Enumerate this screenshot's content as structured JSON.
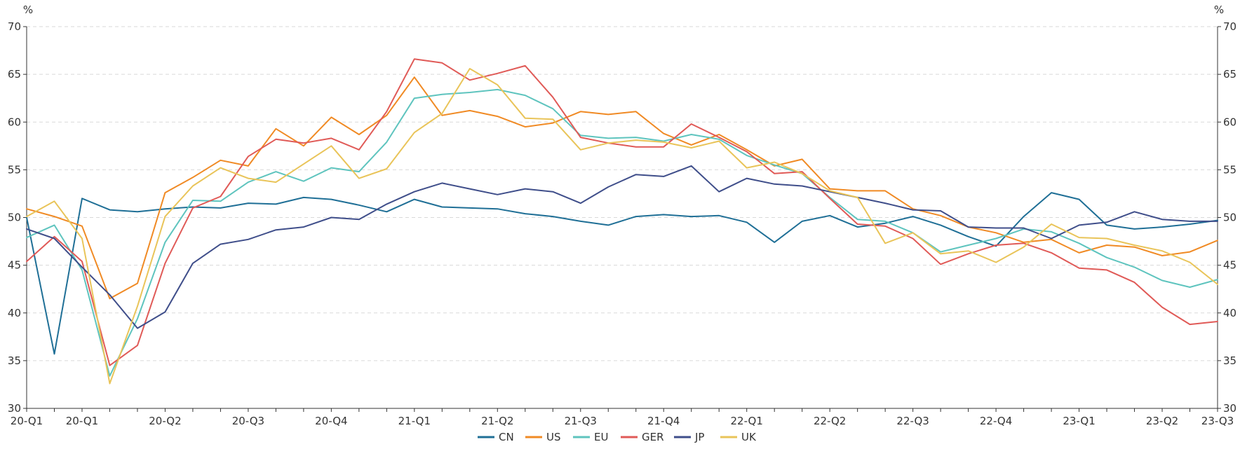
{
  "chart_data": {
    "type": "line",
    "title": "",
    "xlabel": "",
    "ylabel": "%",
    "ylabel_right": "%",
    "ylim": [
      30,
      70
    ],
    "yticks": [
      30,
      35,
      40,
      45,
      50,
      55,
      60,
      65,
      70
    ],
    "grid": true,
    "legend_position": "bottom-center",
    "x_tick_labels": [
      "20-Q1",
      "20-Q1",
      "20-Q2",
      "20-Q3",
      "20-Q4",
      "21-Q1",
      "21-Q2",
      "21-Q3",
      "21-Q4",
      "22-Q1",
      "22-Q2",
      "22-Q3",
      "22-Q4",
      "23-Q1",
      "23-Q2",
      "23-Q3"
    ],
    "x_tick_index": [
      0,
      2,
      5,
      8,
      11,
      14,
      17,
      20,
      23,
      26,
      29,
      32,
      35,
      38,
      41,
      43
    ],
    "n_points": 44,
    "series": [
      {
        "name": "CN",
        "color": "#1f6f96",
        "values": [
          50.0,
          35.7,
          52.0,
          50.8,
          50.6,
          50.9,
          51.1,
          51.0,
          51.5,
          51.4,
          52.1,
          51.9,
          51.3,
          50.6,
          51.9,
          51.1,
          51.0,
          50.9,
          50.4,
          50.1,
          49.6,
          49.2,
          50.1,
          50.3,
          50.1,
          50.2,
          49.5,
          47.4,
          49.6,
          50.2,
          49.0,
          49.4,
          50.1,
          49.2,
          48.0,
          47.0,
          50.1,
          52.6,
          51.9,
          49.2,
          48.8,
          49.0,
          49.3,
          49.7
        ]
      },
      {
        "name": "US",
        "color": "#f08a24",
        "values": [
          50.9,
          50.1,
          49.1,
          41.5,
          43.1,
          52.6,
          54.2,
          56.0,
          55.4,
          59.3,
          57.5,
          60.5,
          58.7,
          60.7,
          64.7,
          60.7,
          61.2,
          60.6,
          59.5,
          59.9,
          61.1,
          60.8,
          61.1,
          58.8,
          57.6,
          58.7,
          57.1,
          55.4,
          56.1,
          53.0,
          52.8,
          52.8,
          50.9,
          50.2,
          49.0,
          48.4,
          47.4,
          47.7,
          46.3,
          47.1,
          46.9,
          46.0,
          46.4,
          47.6
        ]
      },
      {
        "name": "EU",
        "color": "#5ec4be",
        "values": [
          47.9,
          49.2,
          44.5,
          33.4,
          39.4,
          47.4,
          51.8,
          51.7,
          53.7,
          54.8,
          53.8,
          55.2,
          54.8,
          57.9,
          62.5,
          62.9,
          63.1,
          63.4,
          62.8,
          61.4,
          58.6,
          58.3,
          58.4,
          58.0,
          58.7,
          58.2,
          56.5,
          55.5,
          54.6,
          52.1,
          49.8,
          49.6,
          48.4,
          46.4,
          47.1,
          47.8,
          48.8,
          48.5,
          47.3,
          45.8,
          44.8,
          43.4,
          42.7,
          43.5
        ]
      },
      {
        "name": "GER",
        "color": "#e05a57",
        "values": [
          45.4,
          48.0,
          45.4,
          34.5,
          36.6,
          45.2,
          51.0,
          52.2,
          56.4,
          58.2,
          57.8,
          58.3,
          57.1,
          61.1,
          66.6,
          66.2,
          64.4,
          65.1,
          65.9,
          62.6,
          58.4,
          57.8,
          57.4,
          57.4,
          59.8,
          58.4,
          56.9,
          54.6,
          54.8,
          52.0,
          49.3,
          49.1,
          47.8,
          45.1,
          46.2,
          47.1,
          47.3,
          46.3,
          44.7,
          44.5,
          43.2,
          40.6,
          38.8,
          39.1
        ]
      },
      {
        "name": "JP",
        "color": "#3f4e8a",
        "values": [
          48.8,
          47.8,
          44.8,
          41.9,
          38.4,
          40.1,
          45.2,
          47.2,
          47.7,
          48.7,
          49.0,
          50.0,
          49.8,
          51.4,
          52.7,
          53.6,
          53.0,
          52.4,
          53.0,
          52.7,
          51.5,
          53.2,
          54.5,
          54.3,
          55.4,
          52.7,
          54.1,
          53.5,
          53.3,
          52.7,
          52.1,
          51.5,
          50.8,
          50.7,
          49.0,
          48.9,
          48.9,
          47.8,
          49.2,
          49.5,
          50.6,
          49.8,
          49.6,
          49.6
        ]
      },
      {
        "name": "UK",
        "color": "#e9c459",
        "values": [
          50.1,
          51.7,
          47.8,
          32.6,
          40.7,
          50.1,
          53.3,
          55.2,
          54.1,
          53.7,
          55.6,
          57.5,
          54.1,
          55.1,
          58.9,
          60.9,
          65.6,
          63.9,
          60.4,
          60.3,
          57.1,
          57.8,
          58.1,
          57.9,
          57.3,
          58.0,
          55.2,
          55.8,
          54.6,
          52.8,
          52.1,
          47.3,
          48.4,
          46.2,
          46.5,
          45.3,
          46.9,
          49.3,
          47.9,
          47.8,
          47.1,
          46.5,
          45.3,
          43.0
        ]
      }
    ]
  }
}
